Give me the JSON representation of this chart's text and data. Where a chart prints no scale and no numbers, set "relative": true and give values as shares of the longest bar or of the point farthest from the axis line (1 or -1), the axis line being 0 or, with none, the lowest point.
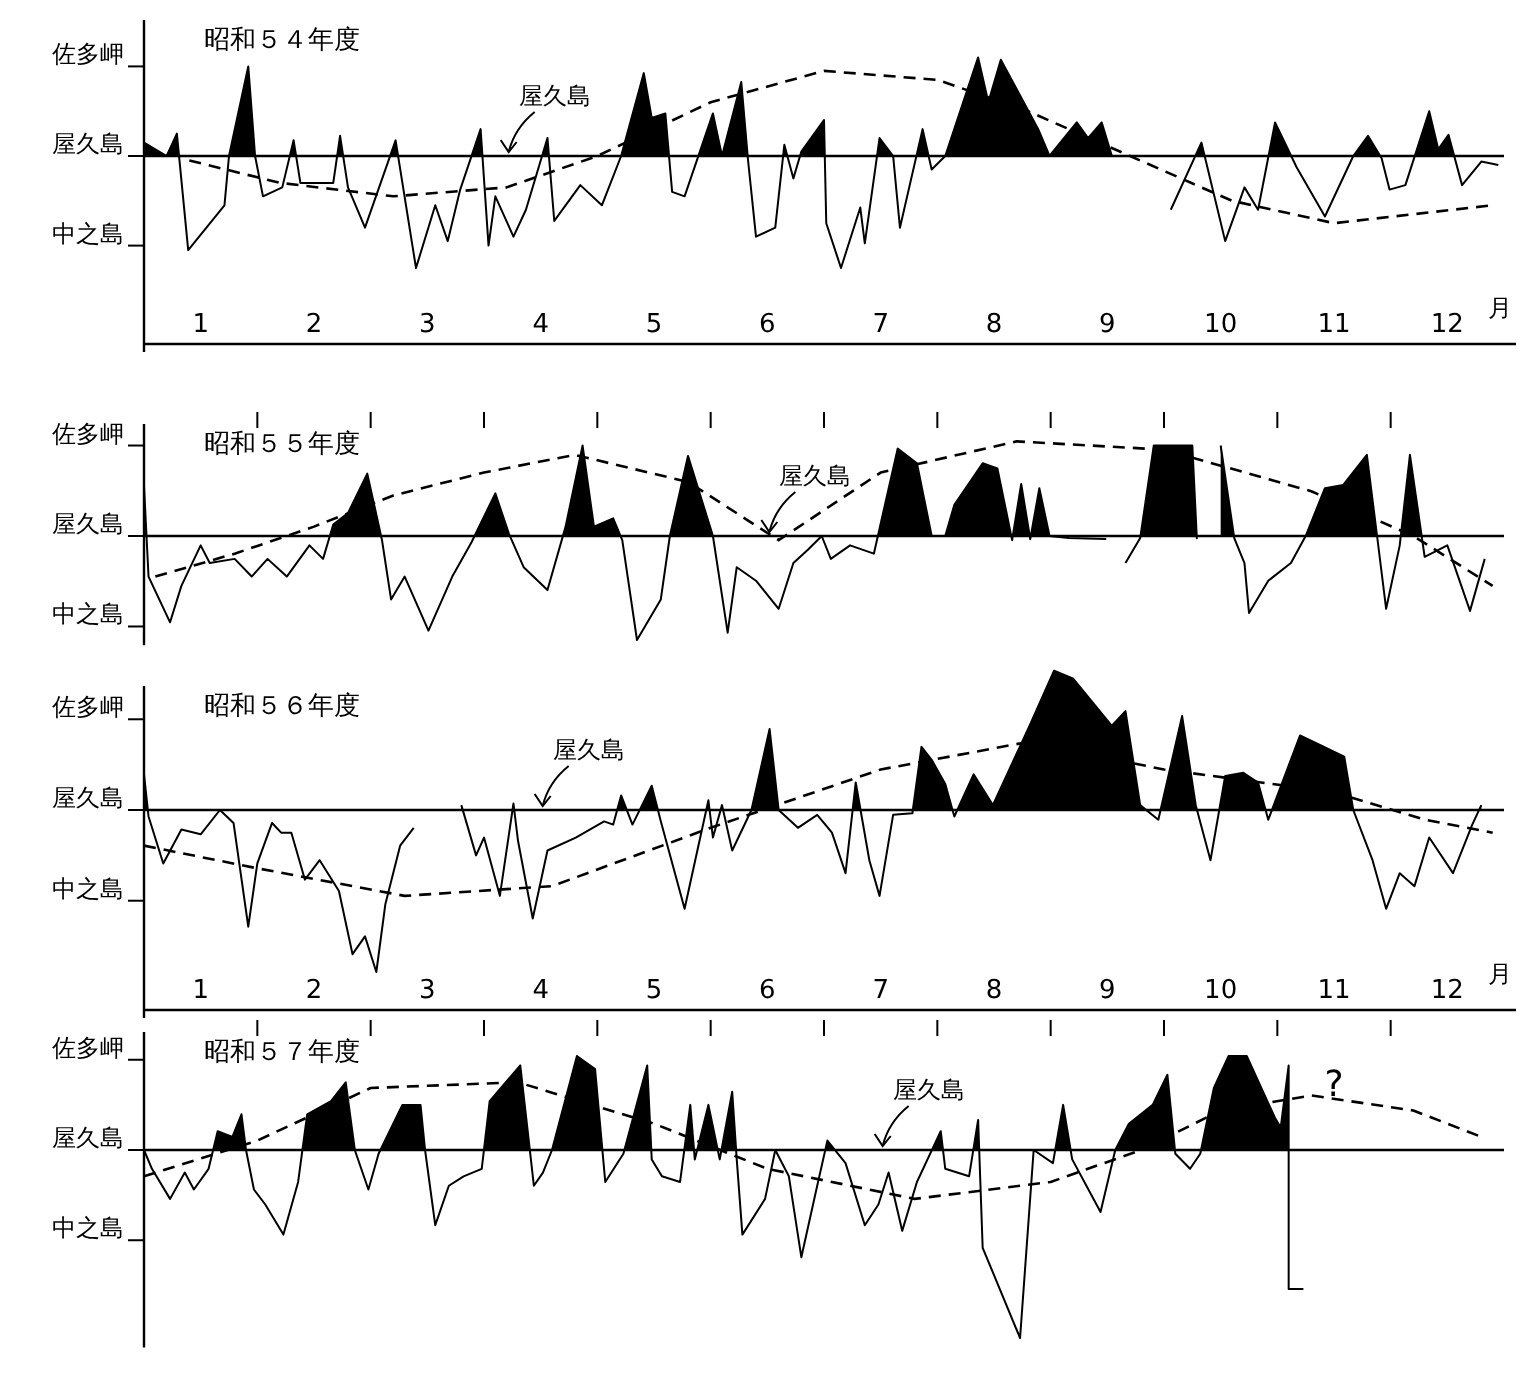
{
  "chart_data": [
    {
      "type": "area",
      "title": "昭和５４年度",
      "xlabel": "月",
      "relative": true,
      "xlim": [
        0,
        12
      ],
      "xticks": [
        {
          "value": 0.5,
          "label": "1"
        },
        {
          "value": 1.5,
          "label": "2"
        },
        {
          "value": 2.5,
          "label": "3"
        },
        {
          "value": 3.5,
          "label": "4"
        },
        {
          "value": 4.5,
          "label": "5"
        },
        {
          "value": 5.5,
          "label": "6"
        },
        {
          "value": 6.5,
          "label": "7"
        },
        {
          "value": 7.5,
          "label": "8"
        },
        {
          "value": 8.5,
          "label": "9"
        },
        {
          "value": 9.5,
          "label": "10"
        },
        {
          "value": 10.5,
          "label": "11"
        },
        {
          "value": 11.5,
          "label": "12"
        }
      ],
      "ref_lines": [
        {
          "axis": "y",
          "value": 0.8,
          "label": "佐多岬"
        },
        {
          "axis": "y",
          "value": 0,
          "label": "屋久島",
          "color": "#000000"
        },
        {
          "axis": "y",
          "value": -0.8,
          "label": "中之島"
        }
      ],
      "annotations": [
        {
          "text": "屋久島",
          "x": 3.2,
          "y": 0
        }
      ],
      "series": [
        {
          "color": "#000000",
          "x": [
            0,
            0.2,
            0.29,
            0.39,
            0.71,
            0.75,
            0.92,
            0.98,
            1.05,
            1.22,
            1.32,
            1.38,
            1.67,
            1.73,
            1.8,
            1.95,
            2.22,
            2.4,
            2.57,
            2.68,
            2.79,
            2.97,
            3.04,
            3.1,
            3.26,
            3.37,
            3.56,
            3.62,
            3.85,
            4.04,
            4.21,
            4.41,
            4.48,
            4.6,
            4.66,
            4.77,
            5.02,
            5.1,
            5.27,
            5.33,
            5.4,
            5.57,
            5.65,
            5.73,
            5.8,
            6.0,
            6.02,
            6.15,
            6.32,
            6.36,
            6.49,
            6.61,
            6.67,
            6.87,
            6.95,
            7.07,
            7.36,
            7.45,
            7.56,
            7.89,
            7.99,
            8.23,
            8.33,
            8.45,
            8.54
          ],
          "values": [
            0.12,
            0,
            0.2,
            -0.84,
            -0.44,
            0,
            0.8,
            0,
            -0.36,
            -0.28,
            0.14,
            -0.24,
            -0.24,
            0.18,
            -0.28,
            -0.64,
            0.14,
            -1,
            -0.44,
            -0.76,
            -0.3,
            0.24,
            -0.8,
            -0.36,
            -0.72,
            -0.48,
            0.16,
            -0.58,
            -0.26,
            -0.44,
            0,
            0.74,
            0.34,
            0.38,
            -0.32,
            -0.36,
            0.38,
            0,
            0.66,
            -0.04,
            -0.72,
            -0.64,
            0.1,
            -0.2,
            0.04,
            0.32,
            -0.6,
            -1,
            -0.46,
            -0.78,
            0.16,
            0,
            -0.64,
            0.24,
            -0.12,
            0,
            0.88,
            0.48,
            0.86,
            0.24,
            0,
            0.3,
            0.16,
            0.3,
            0
          ]
        },
        {
          "color": "#000000",
          "x": [
            9.06,
            9.33,
            9.54,
            9.71,
            9.83,
            9.98,
            10.17,
            10.42,
            10.67,
            10.8,
            10.92,
            10.99,
            11.13,
            11.34,
            11.42,
            11.51,
            11.63,
            11.8,
            11.95
          ],
          "values": [
            -0.48,
            0.12,
            -0.76,
            -0.28,
            -0.48,
            0.3,
            -0.1,
            -0.54,
            0,
            0.18,
            -0.02,
            -0.3,
            -0.26,
            0.4,
            0.06,
            0.19,
            -0.26,
            -0.05,
            -0.08
          ]
        },
        {
          "type": "line",
          "line_style": "dashed",
          "color": "#000000",
          "x": [
            0.4,
            1.2,
            2.2,
            3.2,
            4.0,
            5.0,
            6.0,
            7.0,
            7.8,
            8.7,
            9.6,
            10.5,
            11.9
          ],
          "values": [
            -0.04,
            -0.24,
            -0.36,
            -0.28,
            0,
            0.48,
            0.76,
            0.68,
            0.4,
            0,
            -0.4,
            -0.6,
            -0.44
          ]
        }
      ]
    },
    {
      "type": "area",
      "title": "昭和５５年度",
      "relative": true,
      "tick_labels": "y",
      "xlim": [
        0,
        12
      ],
      "xticks": [
        1,
        2,
        3,
        4,
        5,
        6,
        7,
        8,
        9,
        10,
        11
      ],
      "ref_lines": [
        {
          "axis": "y",
          "value": 0.87,
          "label": "佐多岬"
        },
        {
          "axis": "y",
          "value": 0,
          "label": "屋久島",
          "color": "#000000"
        },
        {
          "axis": "y",
          "value": -0.87,
          "label": "中之島"
        }
      ],
      "annotations": [
        {
          "text": "屋久島",
          "x": 5.5,
          "y": 0
        }
      ],
      "series": [
        {
          "color": "#000000",
          "x": [
            0,
            0.04,
            0.23,
            0.33,
            0.5,
            0.58,
            0.8,
            0.95,
            1.09,
            1.26,
            1.46,
            1.58,
            1.67,
            1.8,
            1.97,
            2.1,
            2.18,
            2.3,
            2.51,
            2.72,
            2.89,
            3.1,
            3.22,
            3.35,
            3.56,
            3.72,
            3.87,
            3.97,
            4.14,
            4.22,
            4.35,
            4.56,
            4.64,
            4.8,
            5.02,
            5.15,
            5.23,
            5.4,
            5.6,
            5.73,
            5.86,
            5.98,
            6.06,
            6.23,
            6.44,
            6.65,
            6.82,
            6.95,
            7.07,
            7.15,
            7.4,
            7.53,
            7.66,
            7.74,
            7.82,
            7.9,
            7.99,
            8.16,
            8.49
          ],
          "values": [
            0.48,
            -0.39,
            -0.83,
            -0.48,
            -0.09,
            -0.26,
            -0.22,
            -0.39,
            -0.22,
            -0.39,
            -0.09,
            -0.22,
            0.11,
            0.22,
            0.6,
            -0.04,
            -0.61,
            -0.39,
            -0.91,
            -0.39,
            -0.06,
            0.41,
            0.02,
            -0.3,
            -0.52,
            0.09,
            0.87,
            0.09,
            0.17,
            -0.04,
            -1,
            -0.61,
            0,
            0.77,
            0,
            -0.93,
            -0.3,
            -0.43,
            -0.7,
            -0.26,
            -0.13,
            0,
            -0.22,
            -0.09,
            -0.17,
            0.84,
            0.7,
            0,
            0,
            0.3,
            0.7,
            0.65,
            -0.04,
            0.5,
            -0.03,
            0.46,
            0,
            -0.02,
            -0.03
          ]
        },
        {
          "color": "#000000",
          "x": [
            8.66,
            8.79,
            8.91,
            9.25,
            9.29
          ],
          "values": [
            -0.26,
            -0.02,
            0.87,
            0.87,
            -0.03
          ]
        },
        {
          "color": "#000000",
          "x": [
            9.5,
            9.62,
            9.71,
            9.75,
            9.92,
            10.12,
            10.25,
            10.42,
            10.58,
            10.79,
            10.88,
            10.96,
            11.08,
            11.17,
            11.3,
            11.5,
            11.7,
            11.83
          ],
          "values": [
            0.87,
            -0.02,
            -0.26,
            -0.74,
            -0.43,
            -0.26,
            0,
            0.46,
            0.49,
            0.78,
            0,
            -0.7,
            -0.09,
            0.78,
            -0.2,
            -0.09,
            -0.72,
            -0.22
          ]
        },
        {
          "type": "line",
          "line_style": "dashed",
          "color": "#000000",
          "x": [
            0.1,
            0.8,
            1.5,
            2.2,
            3.0,
            3.8,
            4.8,
            5.6,
            6.5,
            7.7,
            9.0,
            10.3,
            11.2,
            11.9
          ],
          "values": [
            -0.39,
            -0.17,
            0.09,
            0.39,
            0.61,
            0.78,
            0.52,
            -0.04,
            0.61,
            0.91,
            0.83,
            0.43,
            0,
            -0.48
          ]
        }
      ]
    },
    {
      "type": "area",
      "title": "昭和５６年度",
      "xlabel": "月",
      "relative": true,
      "xlim": [
        0,
        12
      ],
      "xticks": [
        {
          "value": 0.5,
          "label": "1"
        },
        {
          "value": 1.5,
          "label": "2"
        },
        {
          "value": 2.5,
          "label": "3"
        },
        {
          "value": 3.5,
          "label": "4"
        },
        {
          "value": 4.5,
          "label": "5"
        },
        {
          "value": 5.5,
          "label": "6"
        },
        {
          "value": 6.5,
          "label": "7"
        },
        {
          "value": 7.5,
          "label": "8"
        },
        {
          "value": 8.5,
          "label": "9"
        },
        {
          "value": 9.5,
          "label": "10"
        },
        {
          "value": 10.5,
          "label": "11"
        },
        {
          "value": 11.5,
          "label": "12"
        }
      ],
      "ref_lines": [
        {
          "axis": "y",
          "value": 0.56,
          "label": "佐多岬"
        },
        {
          "axis": "y",
          "value": 0,
          "label": "屋久島",
          "color": "#000000"
        },
        {
          "axis": "y",
          "value": -0.56,
          "label": "中之島"
        }
      ],
      "annotations": [
        {
          "text": "屋久島",
          "x": 3.5,
          "y": 0
        }
      ],
      "series": [
        {
          "color": "#000000",
          "x": [
            0,
            0.04,
            0.17,
            0.33,
            0.5,
            0.67,
            0.79,
            0.92,
            1.0,
            1.13,
            1.21,
            1.3,
            1.42,
            1.55,
            1.72,
            1.84,
            1.95,
            2.05,
            2.13,
            2.26,
            2.38
          ],
          "values": [
            0.22,
            -0.04,
            -0.33,
            -0.12,
            -0.15,
            0,
            -0.08,
            -0.72,
            -0.33,
            -0.08,
            -0.14,
            -0.14,
            -0.43,
            -0.31,
            -0.5,
            -0.89,
            -0.78,
            -1,
            -0.58,
            -0.22,
            -0.11
          ]
        },
        {
          "color": "#000000",
          "x": [
            2.8,
            2.93,
            3.0,
            3.14,
            3.26,
            3.3,
            3.43,
            3.56,
            3.81,
            4.06,
            4.14,
            4.21,
            4.31,
            4.48,
            4.56,
            4.77,
            4.98,
            5.02,
            5.1,
            5.19,
            5.36,
            5.52,
            5.6,
            5.77,
            5.94,
            6.07,
            6.19,
            6.28,
            6.4,
            6.49,
            6.61,
            6.78,
            6.86,
            6.95,
            7.07,
            7.15,
            7.32,
            7.49,
            7.82,
            8.03,
            8.2,
            8.54,
            8.66,
            8.79,
            8.95,
            9.16,
            9.28,
            9.41,
            9.54,
            9.7,
            9.83,
            9.92,
            10.2,
            10.38,
            10.59,
            10.67,
            10.84,
            10.96,
            11.08,
            11.21,
            11.34,
            11.55,
            11.72,
            11.8
          ],
          "values": [
            0.03,
            -0.28,
            -0.17,
            -0.53,
            0.04,
            -0.19,
            -0.67,
            -0.25,
            -0.17,
            -0.07,
            -0.09,
            0.09,
            -0.09,
            0.15,
            -0.07,
            -0.61,
            0.06,
            -0.17,
            0.03,
            -0.25,
            0,
            0.5,
            0,
            -0.11,
            -0.03,
            -0.14,
            -0.39,
            0.17,
            -0.31,
            -0.53,
            -0.03,
            -0.02,
            0.39,
            0.31,
            0.16,
            -0.04,
            0.22,
            0.03,
            0.53,
            0.86,
            0.81,
            0.52,
            0.61,
            0.03,
            -0.06,
            0.58,
            0.03,
            -0.31,
            0.21,
            0.23,
            0.17,
            -0.06,
            0.46,
            0.4,
            0.33,
            0,
            -0.31,
            -0.61,
            -0.39,
            -0.47,
            -0.17,
            -0.39,
            -0.09,
            0.03
          ]
        },
        {
          "type": "line",
          "line_style": "dashed",
          "color": "#000000",
          "x": [
            0,
            1.0,
            2.3,
            3.6,
            5.0,
            6.5,
            7.8,
            9.0,
            10.5,
            11.3,
            11.9
          ],
          "values": [
            -0.22,
            -0.36,
            -0.53,
            -0.47,
            -0.11,
            0.25,
            0.42,
            0.25,
            0.11,
            -0.06,
            -0.14
          ]
        }
      ]
    },
    {
      "type": "area",
      "title": "昭和５７年度",
      "relative": true,
      "tick_labels": "y",
      "xlim": [
        0,
        12
      ],
      "xticks": [
        1,
        2,
        3,
        4,
        5,
        6,
        7,
        8,
        9,
        10,
        11
      ],
      "ref_lines": [
        {
          "axis": "y",
          "value": 0.48,
          "label": "佐多岬"
        },
        {
          "axis": "y",
          "value": 0,
          "label": "屋久島",
          "color": "#000000"
        },
        {
          "axis": "y",
          "value": -0.48,
          "label": "中之島"
        }
      ],
      "annotations": [
        {
          "text": "屋久島",
          "x": 6.5,
          "y": 0
        },
        "?"
      ],
      "series": [
        {
          "color": "#000000",
          "x": [
            0,
            0.07,
            0.23,
            0.36,
            0.44,
            0.57,
            0.65,
            0.78,
            0.86,
            0.9,
            0.97,
            1.07,
            1.23,
            1.36,
            1.44,
            1.65,
            1.78,
            1.86,
            1.98,
            2.07,
            2.28,
            2.44,
            2.48,
            2.57,
            2.69,
            2.82,
            2.98,
            3.05,
            3.32,
            3.44,
            3.52,
            3.6,
            3.82,
            3.98,
            4.07,
            4.23,
            4.44,
            4.48,
            4.57,
            4.73,
            4.82,
            4.86,
            4.98,
            5.08,
            5.19,
            5.23,
            5.28,
            5.48,
            5.57,
            5.69,
            5.8,
            5.94,
            6.03,
            6.19,
            6.36,
            6.48,
            6.57,
            6.69,
            6.82,
            7.03,
            7.07,
            7.28,
            7.36,
            7.4,
            7.73,
            7.85,
            8.02,
            8.11,
            8.19,
            8.44,
            8.57,
            8.69,
            8.9,
            9.03,
            9.1,
            9.23,
            9.32,
            9.44,
            9.57,
            9.73,
            9.98,
            10.03,
            10.1,
            10.1,
            10.23
          ],
          "values": [
            0,
            -0.1,
            -0.26,
            -0.12,
            -0.21,
            -0.1,
            0.1,
            0.07,
            0.19,
            0,
            -0.21,
            -0.29,
            -0.45,
            -0.17,
            0.19,
            0.26,
            0.36,
            0,
            -0.21,
            -0.02,
            0.24,
            0.24,
            0,
            -0.4,
            -0.19,
            -0.14,
            -0.1,
            0.26,
            0.45,
            -0.19,
            -0.12,
            0,
            0.5,
            0.43,
            -0.17,
            -0.02,
            0.45,
            -0.05,
            -0.14,
            -0.17,
            0.24,
            -0.05,
            0.24,
            -0.05,
            0.31,
            -0.05,
            -0.45,
            -0.26,
            0,
            -0.14,
            -0.57,
            -0.19,
            0.05,
            -0.07,
            -0.4,
            -0.29,
            -0.12,
            -0.43,
            -0.17,
            0.1,
            -0.1,
            -0.14,
            0.16,
            -0.52,
            -1,
            0,
            -0.07,
            0.24,
            -0.05,
            -0.33,
            0,
            0.14,
            0.24,
            0.4,
            -0.02,
            -0.1,
            -0.02,
            0.33,
            0.5,
            0.5,
            0.17,
            0.12,
            0.45,
            -0.74,
            -0.74
          ]
        },
        {
          "type": "line",
          "line_style": "dashed",
          "color": "#000000",
          "x": [
            0,
            1.0,
            2.0,
            3.3,
            4.5,
            5.5,
            6.8,
            8.0,
            8.8,
            9.5,
            10.3,
            11.2,
            11.8
          ],
          "values": [
            -0.14,
            0.05,
            0.33,
            0.36,
            0.14,
            -0.1,
            -0.26,
            -0.17,
            0,
            0.21,
            0.29,
            0.21,
            0.07
          ]
        }
      ]
    }
  ]
}
